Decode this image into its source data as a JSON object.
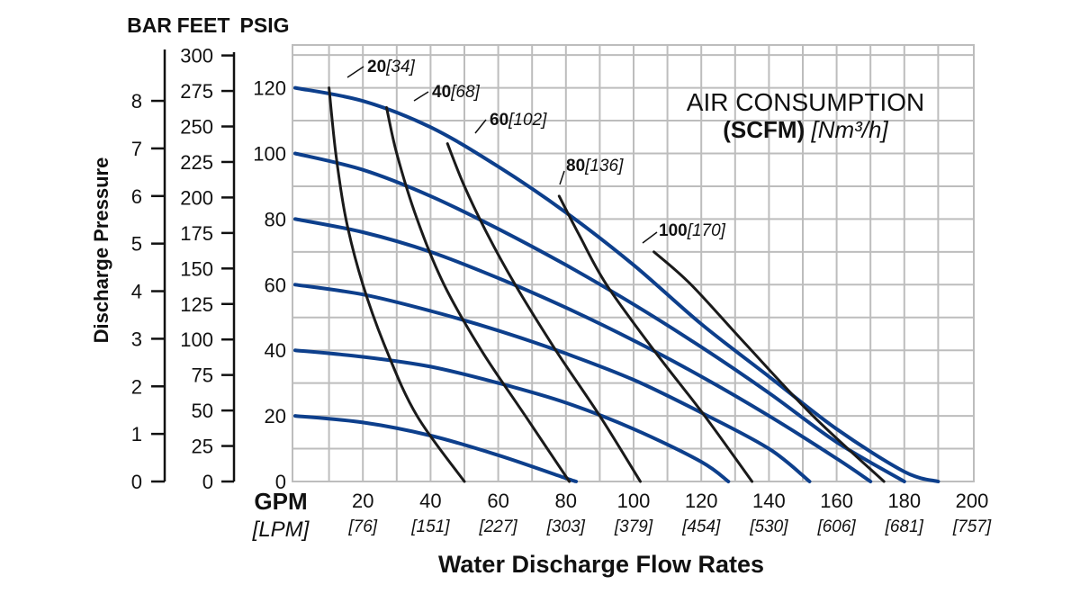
{
  "chart_data": {
    "type": "line",
    "headers": {
      "bar": "BAR",
      "feet": "FEET",
      "psig": "PSIG"
    },
    "ylabel": "Discharge Pressure",
    "xlabel": "Water Discharge Flow Rates",
    "x_unit": "GPM",
    "x_unit_alt": "[LPM]",
    "xlim": [
      0,
      200
    ],
    "ylim": [
      0,
      130
    ],
    "grid": true,
    "x_ticks": [
      {
        "gpm": "20",
        "lpm": "[76]"
      },
      {
        "gpm": "40",
        "lpm": "[151]"
      },
      {
        "gpm": "60",
        "lpm": "[227]"
      },
      {
        "gpm": "80",
        "lpm": "[303]"
      },
      {
        "gpm": "100",
        "lpm": "[379]"
      },
      {
        "gpm": "120",
        "lpm": "[454]"
      },
      {
        "gpm": "140",
        "lpm": "[530]"
      },
      {
        "gpm": "160",
        "lpm": "[606]"
      },
      {
        "gpm": "180",
        "lpm": "[681]"
      },
      {
        "gpm": "200",
        "lpm": "[757]"
      }
    ],
    "psig_ticks": [
      "0",
      "20",
      "40",
      "60",
      "80",
      "100",
      "120"
    ],
    "feet_ticks": [
      "0",
      "25",
      "50",
      "75",
      "100",
      "125",
      "150",
      "175",
      "200",
      "225",
      "250",
      "275",
      "300"
    ],
    "bar_ticks": [
      "0",
      "1",
      "2",
      "3",
      "4",
      "5",
      "6",
      "7",
      "8"
    ],
    "legend": {
      "title": "AIR CONSUMPTION",
      "subtitle_bold": "(SCFM)",
      "subtitle_italic": "[Nm³/h]"
    },
    "colors": {
      "pressure_curves": "#0d3f8c",
      "air_curves": "#1a1a1a",
      "grid": "#bdbdbd"
    },
    "pressure_curves": [
      {
        "psig": 120,
        "points": [
          [
            0,
            120
          ],
          [
            20,
            116
          ],
          [
            40,
            108
          ],
          [
            60,
            96
          ],
          [
            80,
            82
          ],
          [
            100,
            66
          ],
          [
            120,
            48
          ],
          [
            140,
            32
          ],
          [
            160,
            16
          ],
          [
            180,
            3
          ],
          [
            190,
            0
          ]
        ]
      },
      {
        "psig": 100,
        "points": [
          [
            0,
            100
          ],
          [
            20,
            95
          ],
          [
            40,
            87
          ],
          [
            60,
            77
          ],
          [
            80,
            66
          ],
          [
            100,
            54
          ],
          [
            120,
            41
          ],
          [
            140,
            27
          ],
          [
            160,
            12
          ],
          [
            180,
            0
          ]
        ]
      },
      {
        "psig": 80,
        "points": [
          [
            0,
            80
          ],
          [
            20,
            76
          ],
          [
            40,
            70
          ],
          [
            60,
            62
          ],
          [
            80,
            53
          ],
          [
            100,
            43
          ],
          [
            120,
            32
          ],
          [
            140,
            20
          ],
          [
            160,
            7
          ],
          [
            170,
            0
          ]
        ]
      },
      {
        "psig": 60,
        "points": [
          [
            0,
            60
          ],
          [
            20,
            57
          ],
          [
            40,
            52
          ],
          [
            60,
            46
          ],
          [
            80,
            39
          ],
          [
            100,
            31
          ],
          [
            120,
            21
          ],
          [
            140,
            10
          ],
          [
            152,
            0
          ]
        ]
      },
      {
        "psig": 40,
        "points": [
          [
            0,
            40
          ],
          [
            20,
            38
          ],
          [
            40,
            35
          ],
          [
            60,
            30
          ],
          [
            80,
            24
          ],
          [
            100,
            16
          ],
          [
            120,
            6
          ],
          [
            128,
            0
          ]
        ]
      },
      {
        "psig": 20,
        "points": [
          [
            0,
            20
          ],
          [
            20,
            18
          ],
          [
            40,
            14
          ],
          [
            60,
            8
          ],
          [
            80,
            1
          ],
          [
            83,
            0
          ]
        ]
      }
    ],
    "air_curves": [
      {
        "label": "20",
        "label_metric": "[34]",
        "points": [
          [
            10,
            120
          ],
          [
            12,
            100
          ],
          [
            15,
            80
          ],
          [
            20,
            60
          ],
          [
            27,
            40
          ],
          [
            36,
            20
          ],
          [
            50,
            0
          ]
        ]
      },
      {
        "label": "40",
        "label_metric": "[68]",
        "points": [
          [
            27,
            114
          ],
          [
            30,
            100
          ],
          [
            36,
            80
          ],
          [
            44,
            60
          ],
          [
            55,
            40
          ],
          [
            68,
            20
          ],
          [
            81,
            0
          ]
        ]
      },
      {
        "label": "60",
        "label_metric": "[102]",
        "points": [
          [
            45,
            103
          ],
          [
            50,
            90
          ],
          [
            57,
            75
          ],
          [
            65,
            60
          ],
          [
            77,
            40
          ],
          [
            90,
            20
          ],
          [
            102,
            0
          ]
        ]
      },
      {
        "label": "80",
        "label_metric": "[136]",
        "points": [
          [
            78,
            87
          ],
          [
            84,
            75
          ],
          [
            92,
            60
          ],
          [
            106,
            40
          ],
          [
            121,
            20
          ],
          [
            135,
            0
          ]
        ]
      },
      {
        "label": "100",
        "label_metric": "[170]",
        "points": [
          [
            106,
            70
          ],
          [
            117,
            60
          ],
          [
            133,
            42
          ],
          [
            153,
            20
          ],
          [
            174,
            0
          ]
        ]
      }
    ]
  }
}
